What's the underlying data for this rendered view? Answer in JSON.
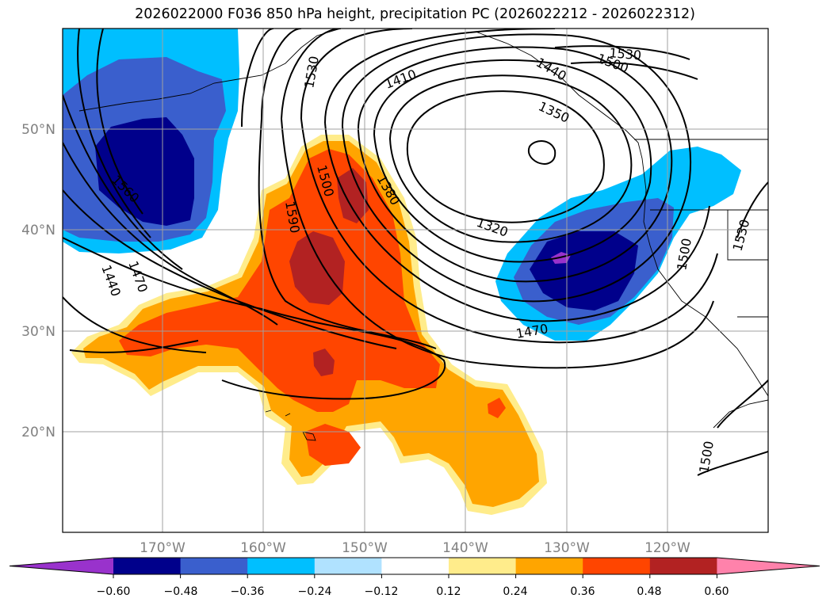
{
  "title": "2026022000 F036 850 hPa height, precipitation PC (2026022212 - 2026022312)",
  "map": {
    "lat_labels": [
      "50°N",
      "40°N",
      "30°N",
      "20°N"
    ],
    "lon_labels": [
      "170°W",
      "160°W",
      "150°W",
      "140°W",
      "130°W",
      "120°W"
    ],
    "contour_labels": [
      "1530",
      "1410",
      "1440",
      "1500",
      "1530",
      "1350",
      "1560",
      "1500",
      "1380",
      "1590",
      "1320",
      "1440",
      "1470",
      "1470",
      "1500",
      "1530",
      "1500"
    ]
  },
  "colorbar": {
    "ticks": [
      "−0.60",
      "−0.48",
      "−0.36",
      "−0.24",
      "−0.12",
      "0.12",
      "0.24",
      "0.36",
      "0.48",
      "0.60"
    ],
    "colors": [
      "#9932cc",
      "#00008b",
      "#3a5fcd",
      "#00bfff",
      "#b0e2ff",
      "#ffffff",
      "#ffec8b",
      "#ffa500",
      "#ff4500",
      "#b22222",
      "#ff82ab"
    ]
  }
}
